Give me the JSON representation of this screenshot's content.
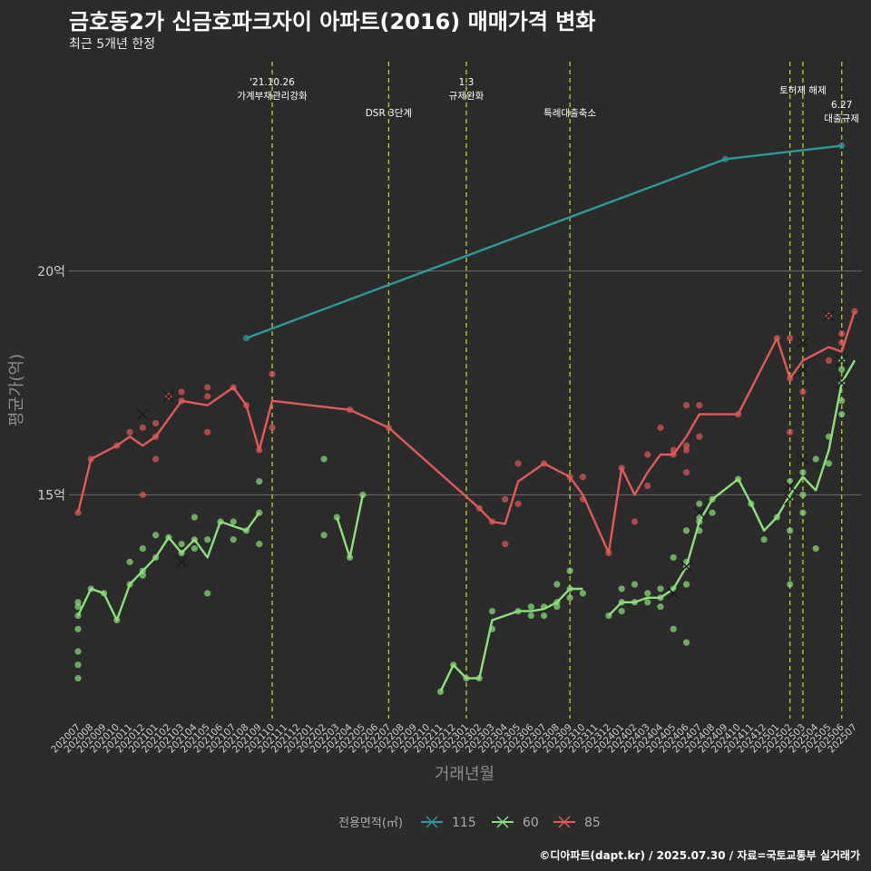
{
  "title": "금호동2가 신금호파크자이 아파트(2016) 매매가격 변화",
  "subtitle": "최근 5개년 한정",
  "caption": "©디아파트(dapt.kr) / 2025.07.30 / 자료=국토교통부 실거래가",
  "chart_data": {
    "type": "line",
    "xlabel": "거래년월",
    "ylabel": "평균가(억)",
    "ylim": [
      10.0,
      24.8
    ],
    "yticks": [
      {
        "value": 15,
        "label": "15억"
      },
      {
        "value": 20,
        "label": "20억"
      }
    ],
    "grid": true,
    "legend": {
      "title": "전용면적(㎡)",
      "position": "bottom"
    },
    "categories": [
      "202007",
      "202008",
      "202009",
      "202010",
      "202011",
      "202012",
      "202101",
      "202102",
      "202103",
      "202104",
      "202105",
      "202106",
      "202107",
      "202108",
      "202109",
      "202110",
      "202111",
      "202112",
      "202201",
      "202202",
      "202203",
      "202204",
      "202205",
      "202206",
      "202207",
      "202208",
      "202209",
      "202210",
      "202211",
      "202212",
      "202301",
      "202302",
      "202303",
      "202304",
      "202305",
      "202306",
      "202307",
      "202308",
      "202309",
      "202310",
      "202311",
      "202312",
      "202401",
      "202402",
      "202403",
      "202404",
      "202405",
      "202406",
      "202407",
      "202408",
      "202409",
      "202410",
      "202411",
      "202412",
      "202501",
      "202502",
      "202503",
      "202504",
      "202505",
      "202506",
      "202507"
    ],
    "annotations": [
      {
        "x": "202110",
        "lines": [
          "'21.10.26",
          "가계부채관리강화"
        ],
        "tier": 0
      },
      {
        "x": "202207",
        "lines": [
          "DSR 3단계"
        ],
        "tier": 2
      },
      {
        "x": "202301",
        "lines": [
          "1.3",
          "규제완화"
        ],
        "tier": 0
      },
      {
        "x": "202309",
        "lines": [
          "특례대출축소"
        ],
        "tier": 2
      },
      {
        "x": "202502",
        "lines": [],
        "tier": 0
      },
      {
        "x": "202503",
        "lines": [
          "토허제 해제"
        ],
        "tier": 1
      },
      {
        "x": "202506",
        "lines": [
          "6.27",
          "대출규제"
        ],
        "tier": 3
      }
    ],
    "series": [
      {
        "name": "115",
        "color": "#2e9a96",
        "line": [
          [
            "202108",
            18.5
          ],
          [
            "202409",
            22.5
          ],
          [
            "202506",
            22.8
          ]
        ],
        "points": [
          [
            "202108",
            18.5
          ],
          [
            "202409",
            22.5
          ],
          [
            "202506",
            22.8
          ]
        ],
        "crosses": []
      },
      {
        "name": "60",
        "color": "#8ee07e",
        "line": [
          [
            "202007",
            12.3
          ],
          [
            "202008",
            12.9
          ],
          [
            "202009",
            12.8
          ],
          [
            "202010",
            12.2
          ],
          [
            "202011",
            13.0
          ],
          [
            "202012",
            13.3
          ],
          [
            "202101",
            13.6
          ],
          [
            "202102",
            14.05
          ],
          [
            "202103",
            13.7
          ],
          [
            "202104",
            14.0
          ],
          [
            "202105",
            13.6
          ],
          [
            "202106",
            14.4
          ],
          [
            "202107",
            14.3
          ],
          [
            "202108",
            14.2
          ],
          [
            "202109",
            14.6
          ],
          null,
          [
            "202203",
            14.5
          ],
          [
            "202204",
            13.6
          ],
          [
            "202205",
            15.0
          ],
          null,
          [
            "202211",
            10.6
          ],
          [
            "202212",
            11.2
          ],
          [
            "202301",
            10.9
          ],
          [
            "202302",
            10.9
          ],
          [
            "202303",
            12.2
          ],
          [
            "202305",
            12.4
          ],
          [
            "202306",
            12.4
          ],
          [
            "202307",
            12.45
          ],
          [
            "202308",
            12.6
          ],
          [
            "202309",
            12.9
          ],
          [
            "202310",
            12.9
          ],
          null,
          [
            "202312",
            12.3
          ],
          [
            "202401",
            12.6
          ],
          [
            "202402",
            12.6
          ],
          [
            "202403",
            12.7
          ],
          [
            "202404",
            12.7
          ],
          [
            "202405",
            12.9
          ],
          [
            "202406",
            13.4
          ],
          [
            "202407",
            14.4
          ],
          [
            "202408",
            14.9
          ],
          [
            "202410",
            15.35
          ],
          [
            "202411",
            14.8
          ],
          [
            "202412",
            14.2
          ],
          [
            "202501",
            14.5
          ],
          [
            "202502",
            15.0
          ],
          [
            "202503",
            15.4
          ],
          [
            "202504",
            15.1
          ],
          [
            "202505",
            16.0
          ],
          [
            "202506",
            17.5
          ],
          [
            "202507",
            18.0
          ]
        ],
        "points": [
          [
            "202007",
            12.6
          ],
          [
            "202007",
            12.5
          ],
          [
            "202007",
            12.3
          ],
          [
            "202007",
            12.0
          ],
          [
            "202007",
            11.5
          ],
          [
            "202007",
            11.2
          ],
          [
            "202007",
            10.9
          ],
          [
            "202008",
            12.9
          ],
          [
            "202009",
            12.8
          ],
          [
            "202010",
            12.2
          ],
          [
            "202011",
            13.0
          ],
          [
            "202011",
            13.5
          ],
          [
            "202012",
            13.3
          ],
          [
            "202012",
            13.8
          ],
          [
            "202012",
            13.2
          ],
          [
            "202101",
            13.6
          ],
          [
            "202101",
            14.1
          ],
          [
            "202102",
            14.05
          ],
          [
            "202103",
            13.9
          ],
          [
            "202103",
            13.7
          ],
          [
            "202104",
            14.0
          ],
          [
            "202104",
            14.5
          ],
          [
            "202104",
            13.8
          ],
          [
            "202105",
            12.8
          ],
          [
            "202105",
            14.0
          ],
          [
            "202106",
            14.4
          ],
          [
            "202107",
            14.4
          ],
          [
            "202107",
            14.0
          ],
          [
            "202108",
            14.2
          ],
          [
            "202109",
            14.6
          ],
          [
            "202109",
            13.9
          ],
          [
            "202109",
            15.3
          ],
          [
            "202202",
            15.8
          ],
          [
            "202202",
            14.1
          ],
          [
            "202203",
            14.5
          ],
          [
            "202204",
            13.6
          ],
          [
            "202205",
            15.0
          ],
          [
            "202211",
            10.6
          ],
          [
            "202212",
            11.2
          ],
          [
            "202301",
            10.9
          ],
          [
            "202302",
            10.9
          ],
          [
            "202303",
            12.0
          ],
          [
            "202303",
            12.4
          ],
          [
            "202305",
            12.4
          ],
          [
            "202306",
            12.5
          ],
          [
            "202306",
            12.3
          ],
          [
            "202307",
            12.5
          ],
          [
            "202307",
            12.3
          ],
          [
            "202308",
            12.6
          ],
          [
            "202308",
            12.5
          ],
          [
            "202308",
            13.0
          ],
          [
            "202309",
            13.3
          ],
          [
            "202309",
            12.7
          ],
          [
            "202309",
            12.9
          ],
          [
            "202310",
            12.8
          ],
          [
            "202312",
            12.3
          ],
          [
            "202401",
            12.9
          ],
          [
            "202401",
            12.4
          ],
          [
            "202401",
            12.6
          ],
          [
            "202402",
            13.0
          ],
          [
            "202402",
            12.6
          ],
          [
            "202403",
            12.6
          ],
          [
            "202403",
            12.8
          ],
          [
            "202404",
            12.9
          ],
          [
            "202404",
            12.7
          ],
          [
            "202404",
            12.5
          ],
          [
            "202405",
            13.6
          ],
          [
            "202405",
            12.9
          ],
          [
            "202405",
            12.0
          ],
          [
            "202406",
            13.4
          ],
          [
            "202406",
            14.2
          ],
          [
            "202406",
            13.5
          ],
          [
            "202406",
            13.0
          ],
          [
            "202406",
            11.7
          ],
          [
            "202407",
            14.4
          ],
          [
            "202407",
            14.8
          ],
          [
            "202407",
            14.5
          ],
          [
            "202407",
            14.2
          ],
          [
            "202408",
            14.9
          ],
          [
            "202408",
            14.6
          ],
          [
            "202410",
            15.35
          ],
          [
            "202411",
            14.8
          ],
          [
            "202412",
            14.0
          ],
          [
            "202501",
            14.5
          ],
          [
            "202502",
            15.3
          ],
          [
            "202502",
            14.9
          ],
          [
            "202502",
            14.2
          ],
          [
            "202502",
            13.0
          ],
          [
            "202503",
            15.5
          ],
          [
            "202503",
            15.0
          ],
          [
            "202503",
            14.6
          ],
          [
            "202504",
            15.8
          ],
          [
            "202504",
            13.8
          ],
          [
            "202505",
            15.7
          ],
          [
            "202505",
            16.3
          ],
          [
            "202506",
            17.8
          ],
          [
            "202506",
            17.1
          ],
          [
            "202506",
            16.8
          ],
          [
            "202506",
            17.5
          ],
          [
            "202506",
            18.0
          ]
        ],
        "crosses": [
          [
            "202103",
            13.5
          ],
          [
            "202405",
            12.8
          ],
          [
            "202406",
            13.4
          ],
          [
            "202407",
            14.6
          ],
          [
            "202502",
            15.2
          ],
          [
            "202502",
            14.9
          ],
          [
            "202503",
            15.8
          ],
          [
            "202503",
            17.8
          ],
          [
            "202506",
            18.0
          ],
          [
            "202506",
            17.5
          ]
        ]
      },
      {
        "name": "85",
        "color": "#e05a5a",
        "line": [
          [
            "202007",
            14.6
          ],
          [
            "202008",
            15.8
          ],
          [
            "202010",
            16.1
          ],
          [
            "202011",
            16.3
          ],
          [
            "202012",
            16.1
          ],
          [
            "202101",
            16.3
          ],
          [
            "202103",
            17.1
          ],
          [
            "202105",
            17.0
          ],
          [
            "202107",
            17.4
          ],
          [
            "202108",
            17.0
          ],
          [
            "202109",
            16.0
          ],
          [
            "202110",
            17.1
          ],
          [
            "202204",
            16.9
          ],
          [
            "202207",
            16.5
          ],
          [
            "202302",
            14.7
          ],
          [
            "202303",
            14.4
          ],
          [
            "202304",
            14.35
          ],
          [
            "202305",
            15.3
          ],
          [
            "202307",
            15.7
          ],
          [
            "202309",
            15.4
          ],
          [
            "202310",
            15.0
          ],
          [
            "202312",
            13.7
          ],
          [
            "202401",
            15.6
          ],
          [
            "202402",
            15.0
          ],
          [
            "202403",
            15.5
          ],
          [
            "202404",
            15.9
          ],
          [
            "202405",
            15.9
          ],
          [
            "202406",
            16.3
          ],
          [
            "202407",
            16.8
          ],
          [
            "202410",
            16.8
          ],
          [
            "202501",
            18.5
          ],
          [
            "202502",
            17.6
          ],
          [
            "202503",
            18.0
          ],
          [
            "202505",
            18.3
          ],
          [
            "202506",
            18.2
          ],
          [
            "202507",
            19.1
          ]
        ],
        "points": [
          [
            "202007",
            14.6
          ],
          [
            "202008",
            15.8
          ],
          [
            "202010",
            16.1
          ],
          [
            "202011",
            16.4
          ],
          [
            "202012",
            16.5
          ],
          [
            "202012",
            15.0
          ],
          [
            "202101",
            16.6
          ],
          [
            "202101",
            16.3
          ],
          [
            "202101",
            15.8
          ],
          [
            "202102",
            17.2
          ],
          [
            "202103",
            17.3
          ],
          [
            "202103",
            17.1
          ],
          [
            "202105",
            17.4
          ],
          [
            "202105",
            17.2
          ],
          [
            "202105",
            16.4
          ],
          [
            "202107",
            17.4
          ],
          [
            "202108",
            17.0
          ],
          [
            "202109",
            16.0
          ],
          [
            "202110",
            17.7
          ],
          [
            "202110",
            16.5
          ],
          [
            "202204",
            16.9
          ],
          [
            "202207",
            16.5
          ],
          [
            "202302",
            14.7
          ],
          [
            "202303",
            14.4
          ],
          [
            "202304",
            14.9
          ],
          [
            "202304",
            13.9
          ],
          [
            "202305",
            15.7
          ],
          [
            "202305",
            14.8
          ],
          [
            "202307",
            15.7
          ],
          [
            "202309",
            15.4
          ],
          [
            "202310",
            15.4
          ],
          [
            "202310",
            14.9
          ],
          [
            "202312",
            13.7
          ],
          [
            "202401",
            15.6
          ],
          [
            "202402",
            14.4
          ],
          [
            "202403",
            15.9
          ],
          [
            "202403",
            15.2
          ],
          [
            "202404",
            16.5
          ],
          [
            "202405",
            15.9
          ],
          [
            "202405",
            16.0
          ],
          [
            "202406",
            17.0
          ],
          [
            "202406",
            16.1
          ],
          [
            "202406",
            16.0
          ],
          [
            "202406",
            15.5
          ],
          [
            "202407",
            17.0
          ],
          [
            "202407",
            16.3
          ],
          [
            "202410",
            16.8
          ],
          [
            "202501",
            18.5
          ],
          [
            "202502",
            18.5
          ],
          [
            "202502",
            17.6
          ],
          [
            "202502",
            16.4
          ],
          [
            "202503",
            17.3
          ],
          [
            "202505",
            18.0
          ],
          [
            "202505",
            19.0
          ],
          [
            "202506",
            18.6
          ],
          [
            "202506",
            18.4
          ],
          [
            "202507",
            19.1
          ]
        ],
        "crosses": [
          [
            "202012",
            16.8
          ],
          [
            "202102",
            17.2
          ],
          [
            "202503",
            18.4
          ],
          [
            "202505",
            19.0
          ]
        ]
      }
    ]
  }
}
